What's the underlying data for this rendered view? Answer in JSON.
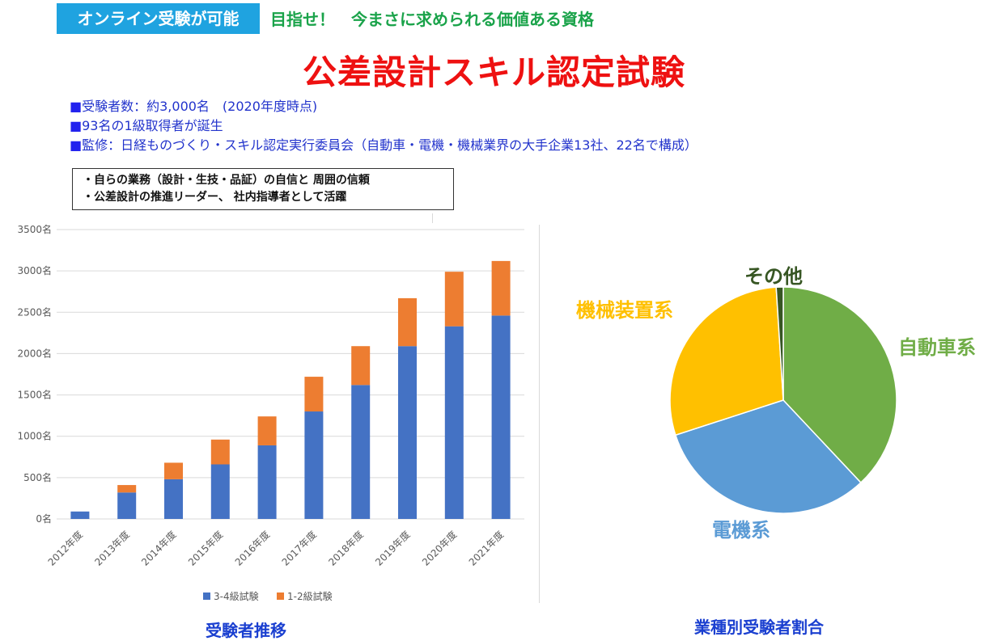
{
  "header": {
    "badge": "オンライン受験が可能",
    "tagline": "目指せ！　今まさに求められる価値ある資格",
    "title": "公差設計スキル認定試験"
  },
  "info": {
    "marker": "■",
    "lines": [
      "受験者数：約3,000名　(2020年度時点)",
      "93名の1級取得者が誕生",
      "監修：日経ものづくり・スキル認定実行委員会（自動車・電機・機械業界の大手企業13社、22名で構成）"
    ]
  },
  "notes": [
    "・自らの業務（設計・生技・品証）の自信と 周囲の信頼",
    "・公差設計の推進リーダー、 社内指導者として活躍"
  ],
  "captions": {
    "bar": "受験者推移",
    "pie": "業種別受験者割合"
  },
  "colors": {
    "bar_low": "#4472c4",
    "bar_high": "#ed7d31",
    "pie_auto": "#70ad47",
    "pie_elec": "#5b9bd5",
    "pie_mech": "#ffc000",
    "pie_other": "#375623"
  },
  "chart_data": [
    {
      "type": "bar",
      "stacked": true,
      "categories": [
        "2012年度",
        "2013年度",
        "2014年度",
        "2015年度",
        "2016年度",
        "2017年度",
        "2018年度",
        "2019年度",
        "2020年度",
        "2021年度"
      ],
      "series": [
        {
          "name": "3-4級試験",
          "values": [
            90,
            320,
            480,
            660,
            890,
            1300,
            1620,
            2090,
            2330,
            2460
          ]
        },
        {
          "name": "1-2級試験",
          "values": [
            0,
            90,
            200,
            300,
            350,
            420,
            470,
            580,
            660,
            660
          ]
        }
      ],
      "ylim": [
        0,
        3500
      ],
      "yticks": [
        "0名",
        "500名",
        "1000名",
        "1500名",
        "2000名",
        "2500名",
        "3000名",
        "3500名"
      ],
      "ytick_values": [
        0,
        500,
        1000,
        1500,
        2000,
        2500,
        3000,
        3500
      ],
      "grid": true,
      "legend": "bottom"
    },
    {
      "type": "pie",
      "labels": [
        "自動車系",
        "電機系",
        "機械装置系",
        "その他"
      ],
      "values": [
        38,
        32,
        29,
        1
      ]
    }
  ]
}
